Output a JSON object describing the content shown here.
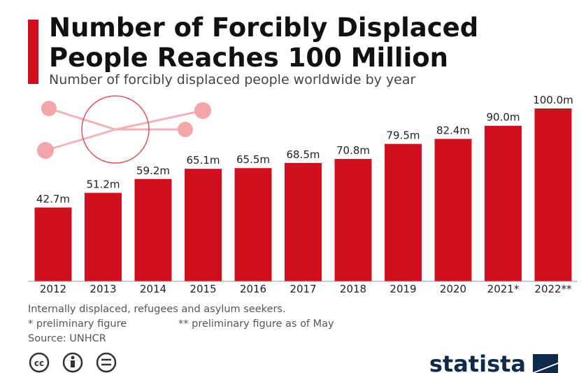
{
  "chart_data": {
    "type": "bar",
    "title": "Number of Forcibly Displaced People Reaches 100 Million",
    "subtitle": "Number of forcibly displaced people worldwide by year",
    "categories": [
      "2012",
      "2013",
      "2014",
      "2015",
      "2016",
      "2017",
      "2018",
      "2019",
      "2020",
      "2021*",
      "2022**"
    ],
    "values": [
      42.7,
      51.2,
      59.2,
      65.1,
      65.5,
      68.5,
      70.8,
      79.5,
      82.4,
      90.0,
      100.0
    ],
    "value_labels": [
      "42.7m",
      "51.2m",
      "59.2m",
      "65.1m",
      "65.5m",
      "68.5m",
      "70.8m",
      "79.5m",
      "82.4m",
      "90.0m",
      "100.0m"
    ],
    "color": "#d0101e",
    "notes": [
      "Internally displaced, refugees and asylum seekers.",
      "* preliminary figure",
      "** preliminary figure as of May"
    ],
    "source": "Source: UNHCR",
    "brand": "statista"
  }
}
